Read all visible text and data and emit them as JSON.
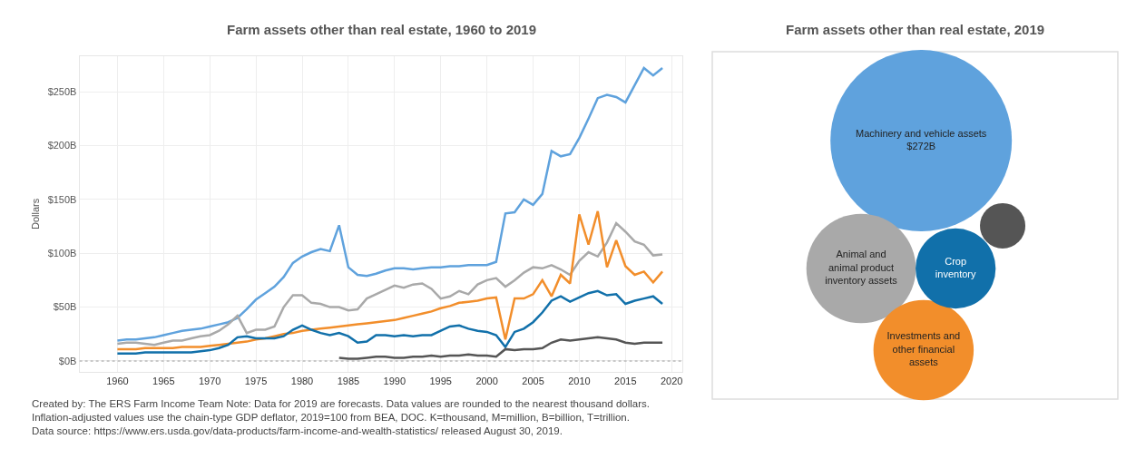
{
  "chart_data": [
    {
      "type": "line",
      "title": "Farm assets other than real estate, 1960 to 2019",
      "ylabel": "Dollars",
      "x": [
        1960,
        1961,
        1962,
        1963,
        1964,
        1965,
        1966,
        1967,
        1968,
        1969,
        1970,
        1971,
        1972,
        1973,
        1974,
        1975,
        1976,
        1977,
        1978,
        1979,
        1980,
        1981,
        1982,
        1983,
        1984,
        1985,
        1986,
        1987,
        1988,
        1989,
        1990,
        1991,
        1992,
        1993,
        1994,
        1995,
        1996,
        1997,
        1998,
        1999,
        2000,
        2001,
        2002,
        2003,
        2004,
        2005,
        2006,
        2007,
        2008,
        2009,
        2010,
        2011,
        2012,
        2013,
        2014,
        2015,
        2016,
        2017,
        2018,
        2019
      ],
      "series": [
        {
          "color": "#5fa2dd",
          "values": [
            19,
            20,
            20,
            21,
            22,
            24,
            26,
            28,
            29,
            30,
            32,
            34,
            36,
            40,
            48,
            57,
            63,
            69,
            78,
            91,
            97,
            101,
            104,
            102,
            126,
            87,
            80,
            79,
            81,
            84,
            86,
            86,
            85,
            86,
            87,
            87,
            88,
            88,
            89,
            89,
            89,
            92,
            137,
            138,
            150,
            145,
            155,
            195,
            190,
            192,
            207,
            225,
            244,
            247,
            245,
            240,
            256,
            272,
            265,
            272
          ]
        },
        {
          "color": "#a9a9a9",
          "values": [
            16,
            17,
            17,
            16,
            15,
            17,
            19,
            19,
            21,
            23,
            24,
            28,
            34,
            42,
            26,
            29,
            29,
            32,
            50,
            61,
            61,
            54,
            53,
            50,
            50,
            47,
            48,
            58,
            62,
            66,
            70,
            68,
            71,
            72,
            67,
            58,
            60,
            65,
            62,
            71,
            75,
            77,
            69,
            75,
            82,
            87,
            86,
            89,
            85,
            80,
            93,
            101,
            97,
            110,
            128,
            120,
            111,
            108,
            98,
            99
          ]
        },
        {
          "color": "#f28e2b",
          "values": [
            11,
            11,
            11,
            12,
            12,
            12,
            12,
            13,
            13,
            13,
            14,
            15,
            16,
            17,
            18,
            20,
            21,
            23,
            25,
            26,
            28,
            29,
            30,
            31,
            32,
            33,
            34,
            35,
            36,
            37,
            38,
            40,
            42,
            44,
            46,
            49,
            51,
            54,
            55,
            56,
            58,
            59,
            20,
            58,
            58,
            62,
            75,
            60,
            80,
            72,
            136,
            108,
            139,
            87,
            112,
            88,
            80,
            83,
            73,
            83
          ]
        },
        {
          "color": "#1170aa",
          "values": [
            7,
            7,
            7,
            8,
            8,
            8,
            8,
            8,
            8,
            9,
            10,
            12,
            15,
            22,
            23,
            21,
            21,
            21,
            23,
            29,
            33,
            29,
            26,
            24,
            26,
            23,
            17,
            18,
            24,
            24,
            23,
            24,
            23,
            24,
            24,
            28,
            32,
            33,
            30,
            28,
            27,
            24,
            13,
            27,
            30,
            36,
            45,
            56,
            60,
            55,
            59,
            63,
            65,
            61,
            62,
            53,
            56,
            58,
            60,
            53
          ]
        },
        {
          "color": "#555555",
          "values": [
            null,
            null,
            null,
            null,
            null,
            null,
            null,
            null,
            null,
            null,
            null,
            null,
            null,
            null,
            null,
            null,
            null,
            null,
            null,
            null,
            null,
            null,
            null,
            null,
            3,
            2,
            2,
            3,
            4,
            4,
            3,
            3,
            4,
            4,
            5,
            4,
            5,
            5,
            6,
            5,
            5,
            4,
            11,
            10,
            11,
            11,
            12,
            17,
            20,
            19,
            20,
            21,
            22,
            21,
            20,
            17,
            16,
            17,
            17,
            17
          ]
        }
      ],
      "xlim": [
        1955.9,
        2021.2
      ],
      "xticks": [
        1960,
        1965,
        1970,
        1975,
        1980,
        1985,
        1990,
        1995,
        2000,
        2005,
        2010,
        2015,
        2020
      ],
      "ylim": [
        -10,
        283
      ],
      "yticks": [
        {
          "value": 0,
          "label": "$0B"
        },
        {
          "value": 50,
          "label": "$50B"
        },
        {
          "value": 100,
          "label": "$100B"
        },
        {
          "value": 150,
          "label": "$150B"
        },
        {
          "value": 200,
          "label": "$200B"
        },
        {
          "value": 250,
          "label": "$250B"
        }
      ],
      "grid": true,
      "line_style": "solid",
      "ref_lines": [
        {
          "axis": "y",
          "value": 0,
          "label": null,
          "color": "#bbbbbb",
          "line_style": "dotted"
        }
      ],
      "annotations": [
        "Created by: The ERS Farm Income Team Note: Data for 2019 are forecasts. Data values are rounded to the nearest thousand dollars. Inflation-adjusted values use the chain-type GDP deflator, 2019=100 from BEA, DOC. K=thousand, M=million, B=billion, T=trillion. Data source: https://www.ers.usda.gov/data-products/farm-income-and-wealth-statistics/ released August 30, 2019."
      ]
    },
    {
      "type": "other",
      "title": "Farm assets other than real estate, 2019",
      "categories": [
        "Machinery and vehicle assets",
        "Animal and animal product inventory assets",
        "Investments and other financial assets",
        "Crop inventory",
        null
      ],
      "values": [
        272,
        null,
        null,
        null,
        null
      ],
      "colors": [
        "#5fa2dd",
        "#a9a9a9",
        "#f28e2b",
        "#1170aa",
        "#555555"
      ],
      "value_labels": [
        "$272B",
        null,
        null,
        null,
        null
      ]
    }
  ]
}
